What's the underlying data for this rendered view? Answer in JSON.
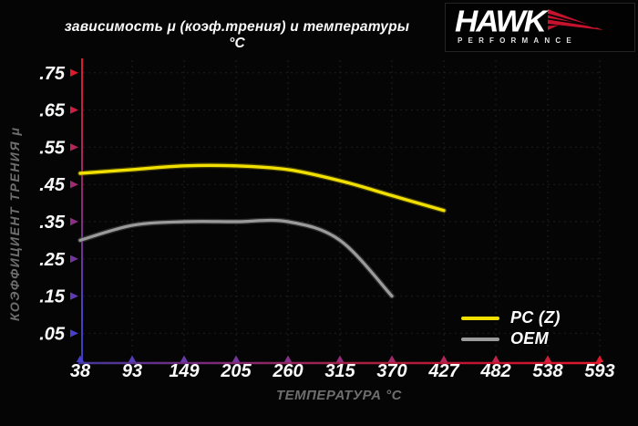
{
  "title": "зависимость μ (коэф.трения) и температуры °C",
  "logo": {
    "brand": "HAWK",
    "sub": "PERFORMANCE"
  },
  "chart_data": {
    "type": "line",
    "title": "зависимость μ (коэф.трения) и температуры °C",
    "xlabel": "ТЕМПЕРАТУРА °C",
    "ylabel": "КОЭФФИЦИЕНТ ТРЕНИЯ μ",
    "x_ticks": [
      38,
      93,
      149,
      205,
      260,
      315,
      370,
      427,
      482,
      538,
      593
    ],
    "y_ticks": [
      0.75,
      0.65,
      0.55,
      0.45,
      0.35,
      0.25,
      0.15,
      0.05
    ],
    "y_tick_labels": [
      ".75",
      ".65",
      ".55",
      ".45",
      ".35",
      ".25",
      ".15",
      ".05"
    ],
    "ylim": [
      0,
      0.8
    ],
    "grid": true,
    "legend_position": "lower-right",
    "series": [
      {
        "name": "PC (Z)",
        "color": "#f2e000",
        "x": [
          38,
          93,
          149,
          205,
          260,
          315,
          370,
          427
        ],
        "values": [
          0.48,
          0.49,
          0.5,
          0.5,
          0.49,
          0.46,
          0.42,
          0.38
        ]
      },
      {
        "name": "OEM",
        "color": "#9b9b9b",
        "x": [
          38,
          93,
          149,
          205,
          260,
          315,
          370
        ],
        "values": [
          0.3,
          0.34,
          0.35,
          0.35,
          0.35,
          0.3,
          0.15
        ]
      }
    ]
  },
  "colors": {
    "background": "#050505",
    "axis_hot": "#e01a2c",
    "axis_cold": "#4840c8",
    "grid": "#1e1e1e",
    "text_primary": "#fafafa",
    "text_secondary": "#6e6e6e",
    "logo_red": "#c6122d"
  }
}
